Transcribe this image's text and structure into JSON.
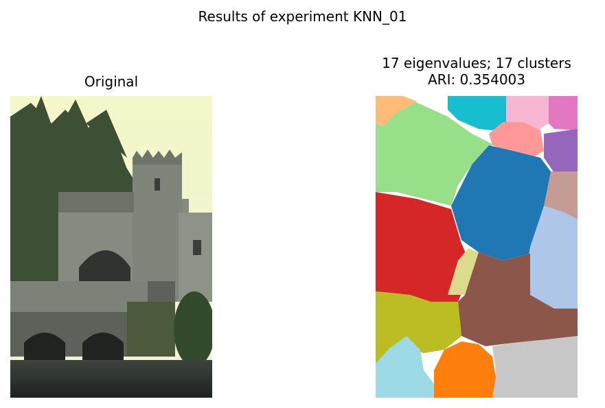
{
  "figure": {
    "suptitle": "Results of experiment KNN_01",
    "left_panel": {
      "title": "Original"
    },
    "right_panel": {
      "title_line1": "17 eigenvalues; 17 clusters",
      "title_line2": "ARI: 0.354003"
    }
  },
  "palette": {
    "sky": "#f6f8d0",
    "tree": "#3f5238",
    "stone": "#8a8f84",
    "stone_dark": "#4b514a",
    "water": "#2b302d",
    "cluster_colors": [
      "#ffbb78",
      "#17becf",
      "#f7b6d2",
      "#e377c2",
      "#98df8a",
      "#ff9896",
      "#9467bd",
      "#1f77b4",
      "#c49c94",
      "#d62728",
      "#aec7e8",
      "#dbdb8d",
      "#8c564b",
      "#bcbd22",
      "#c7c7c7",
      "#9edae5",
      "#ff7f0e"
    ]
  }
}
